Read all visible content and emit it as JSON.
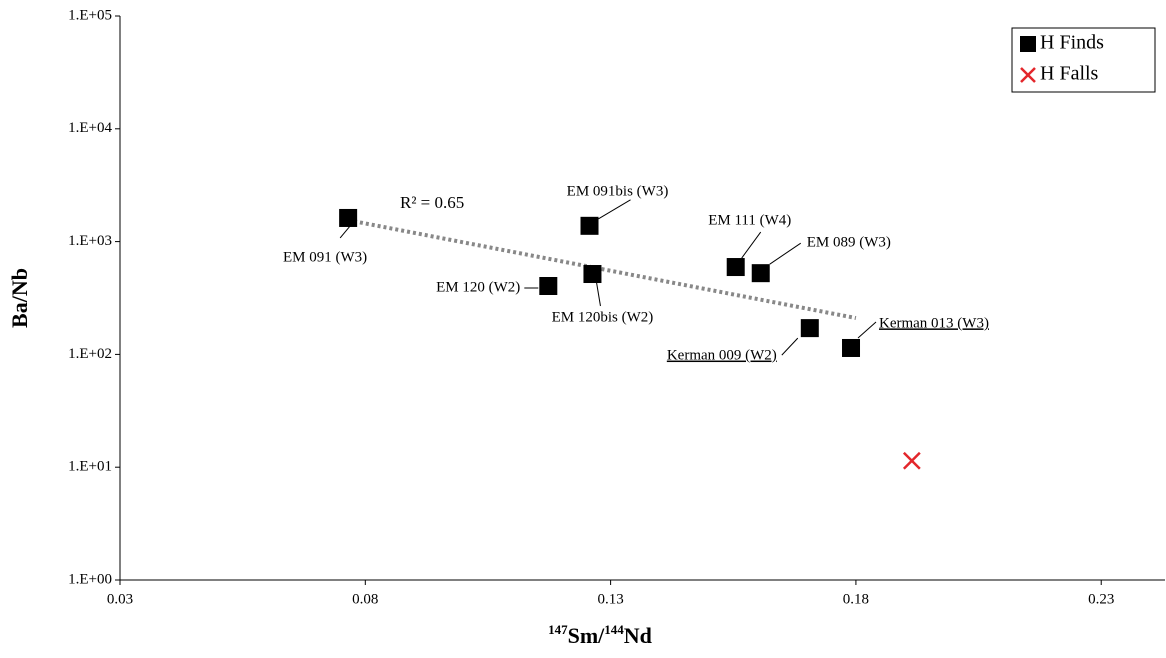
{
  "chart_data": {
    "type": "scatter",
    "x_label": [
      "147",
      "Sm/",
      "144",
      "Nd"
    ],
    "y_label": "Ba/Nb",
    "xlim": [
      0.03,
      0.243
    ],
    "xticks": [
      0.03,
      0.08,
      0.13,
      0.18,
      0.23
    ],
    "ylim": [
      1,
      100000
    ],
    "log_y": true,
    "yticks": [
      {
        "value": 1,
        "label": "1.E+00"
      },
      {
        "value": 10,
        "label": "1.E+01"
      },
      {
        "value": 100,
        "label": "1.E+02"
      },
      {
        "value": 1000,
        "label": "1.E+03"
      },
      {
        "value": 10000,
        "label": "1.E+04"
      },
      {
        "value": 100000,
        "label": "1.E+05"
      }
    ],
    "legend_position": "upper right",
    "series": [
      {
        "name": "H Finds",
        "marker": "square",
        "color": "#000000",
        "x": [
          0.0765,
          0.1257,
          0.1173,
          0.1263,
          0.1555,
          0.1606,
          0.1706,
          0.179
        ],
        "values": [
          1620,
          1380,
          404,
          516,
          595,
          525,
          171,
          114
        ],
        "labels": [
          "EM 091 (W3)",
          "EM 091bis (W3)",
          "EM 120 (W2)",
          "EM 120bis (W2)",
          "EM 111 (W4)",
          "EM 089 (W3)",
          "Kerman 009 (W2)",
          "Kerman 013 (W3)"
        ]
      },
      {
        "name": "H Falls",
        "marker": "x",
        "color": "#e3262b",
        "x": [
          0.1914
        ],
        "values": [
          11.4
        ]
      }
    ],
    "trendline": {
      "x": [
        0.0765,
        0.18
      ],
      "values": [
        1550,
        210
      ],
      "color": "#888888",
      "annotation": "R² = 0.65"
    }
  }
}
